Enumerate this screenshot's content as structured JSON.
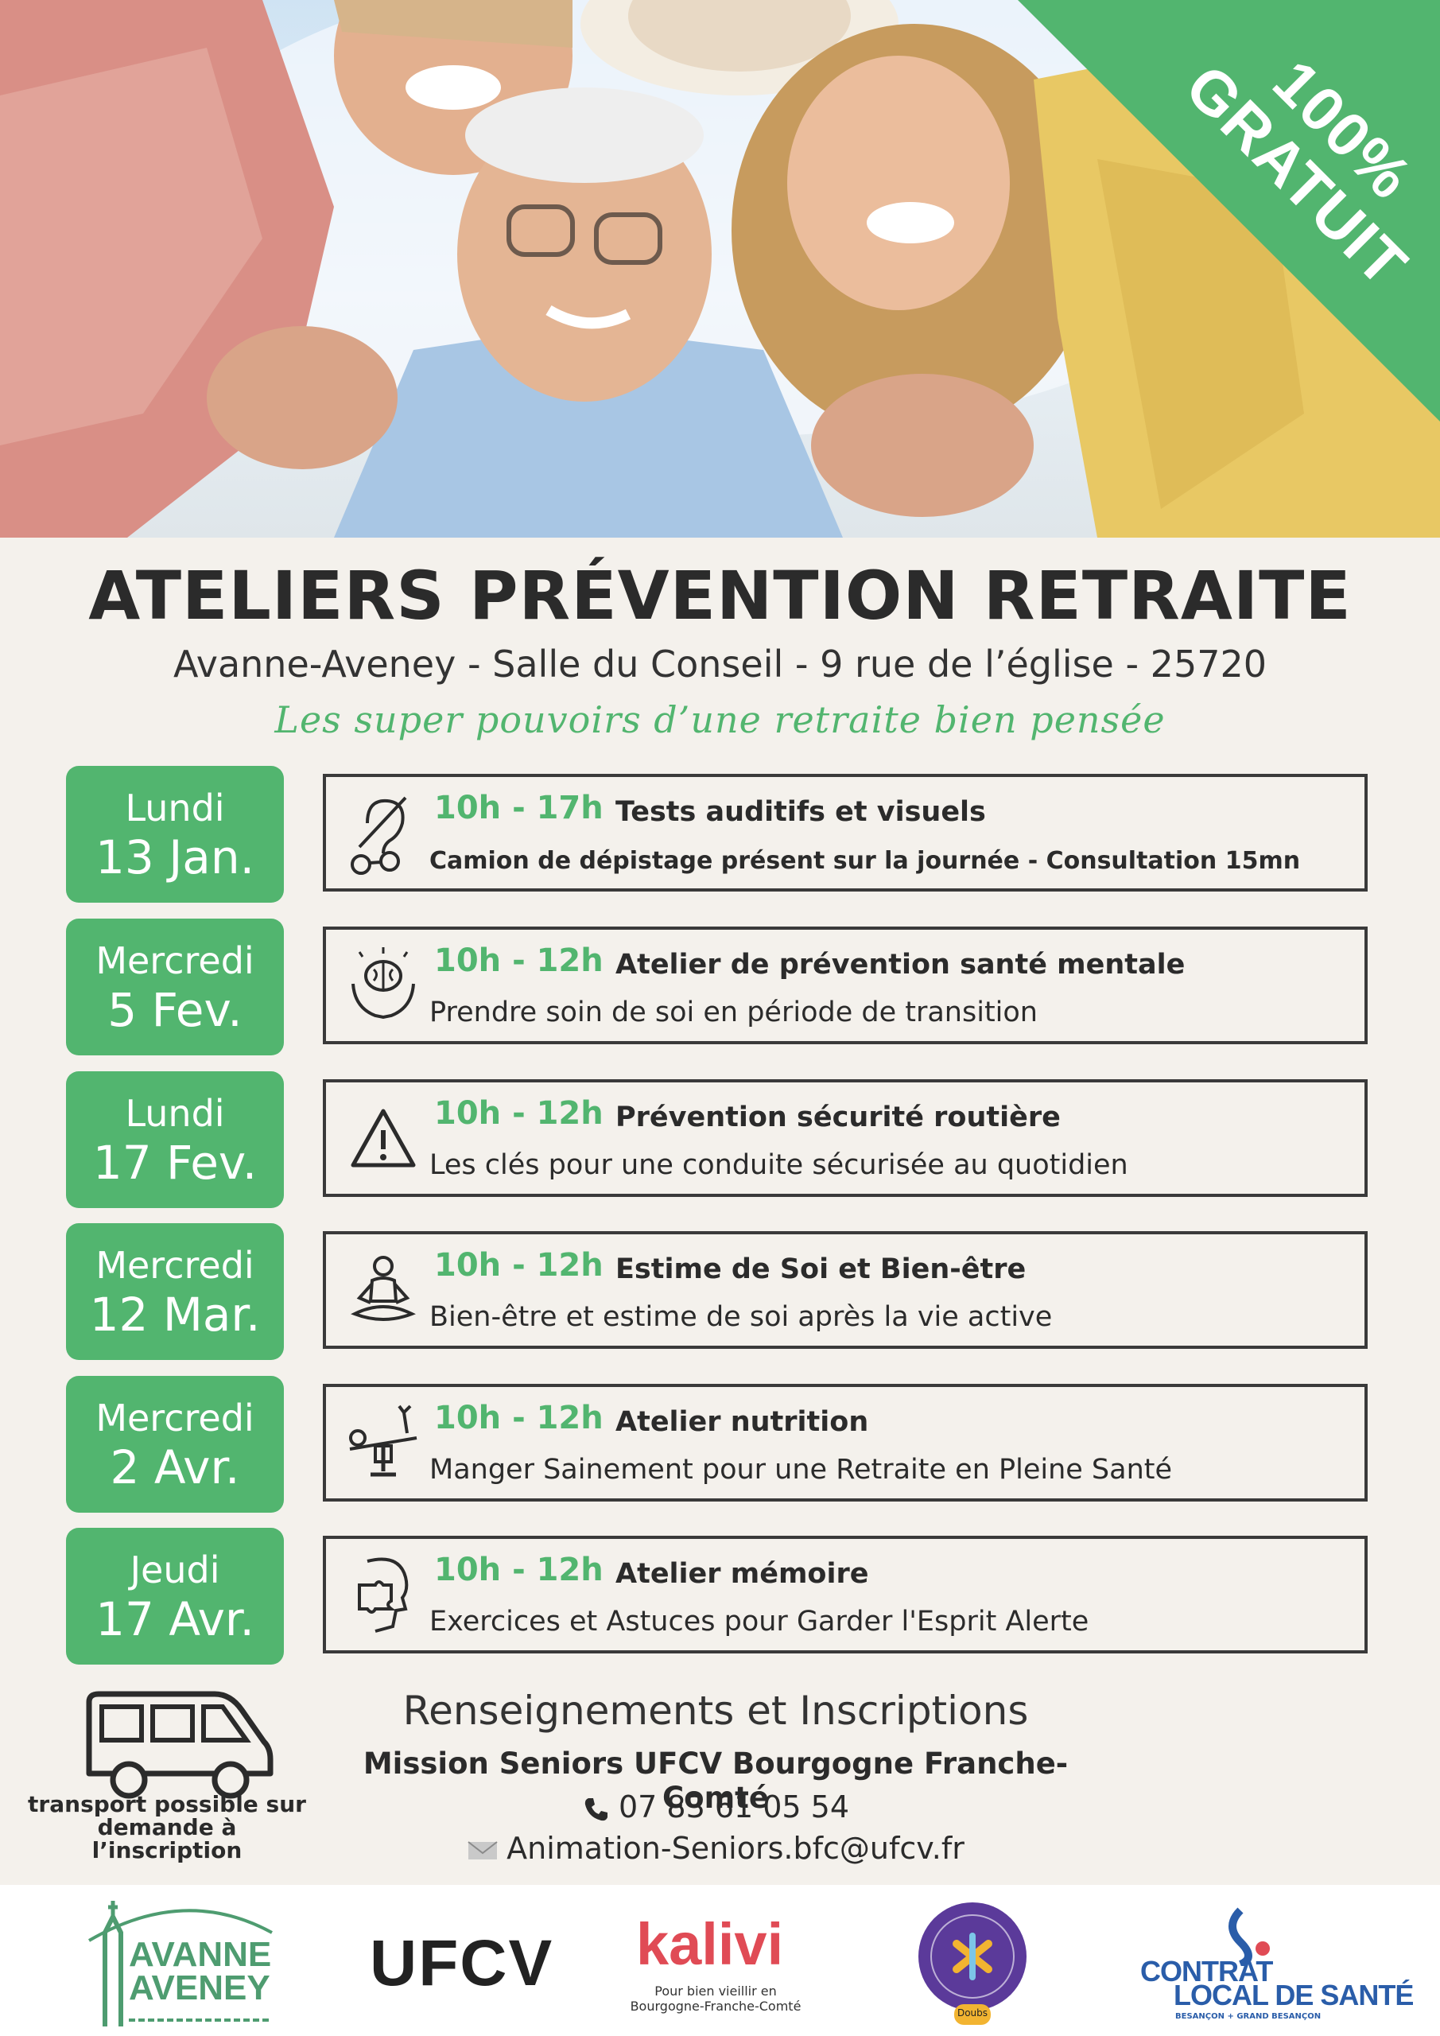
{
  "badge": {
    "line1": "100%",
    "line2": "GRATUIT"
  },
  "header": {
    "title": "ATELIERS PRÉVENTION RETRAITE",
    "subtitle": "Avanne-Aveney - Salle du Conseil - 9 rue de l’église - 25720",
    "tagline": "Les super pouvoirs d’une retraite bien pensée"
  },
  "schedule": [
    {
      "day": "Lundi",
      "date": "13 Jan.",
      "time": "10h - 17h",
      "title": "Tests auditifs et visuels",
      "description": "Camion de dépistage présent sur la journée - Consultation 15mn",
      "icon": "hearing-and-glasses-icon"
    },
    {
      "day": "Mercredi",
      "date": "5 Fev.",
      "time": "10h - 12h",
      "title": "Atelier de prévention santé mentale",
      "description": "Prendre soin de soi en période de transition",
      "icon": "brain-in-hands-icon"
    },
    {
      "day": "Lundi",
      "date": "17 Fev.",
      "time": "10h - 12h",
      "title": "Prévention sécurité routière",
      "description": "Les clés pour une conduite sécurisée au quotidien",
      "icon": "warning-triangle-icon"
    },
    {
      "day": "Mercredi",
      "date": "12 Mar.",
      "time": "10h - 12h",
      "title": "Estime de Soi et Bien-être",
      "description": "Bien-être et estime de soi après la vie active",
      "icon": "meditation-icon"
    },
    {
      "day": "Mercredi",
      "date": "2 Avr.",
      "time": "10h - 12h",
      "title": "Atelier nutrition",
      "description": "Manger Sainement pour une Retraite en Pleine Santé",
      "icon": "balance-scale-icon"
    },
    {
      "day": "Jeudi",
      "date": "17 Avr.",
      "time": "10h - 12h",
      "title": "Atelier mémoire",
      "description": "Exercices et Astuces pour Garder l'Esprit Alerte",
      "icon": "puzzle-head-icon"
    }
  ],
  "contact": {
    "heading": "Renseignements et Inscriptions",
    "organization": "Mission Seniors UFCV Bourgogne Franche-Comté",
    "phone": "07 83 61 05 54",
    "email": "Animation-Seniors.bfc@ufcv.fr",
    "transport_note": "transport possible sur demande à l’inscription"
  },
  "footer": {
    "avanne_line1": "AVANNE",
    "avanne_line2": "AVENEY",
    "ufcv": "UFCV",
    "kalivi": "kalivi",
    "kalivi_sub": "Pour bien vieillir en Bourgogne-Franche-Comté",
    "commission_badge": "Doubs",
    "contrat_line1": "CONTRAT",
    "contrat_line2": "LOCAL DE SANTÉ",
    "contrat_sub": "BESANÇON + GRAND BESANÇON"
  },
  "colors": {
    "green": "#52b56f",
    "dark": "#2b2b2b",
    "background": "#f4f1ec"
  }
}
